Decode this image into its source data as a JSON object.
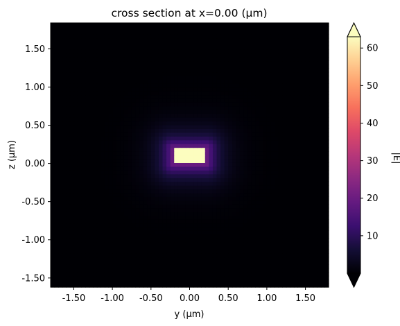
{
  "chart_data": {
    "type": "heatmap",
    "title": "cross section at x=0.00 (μm)",
    "xlabel": "y (μm)",
    "ylabel": "z (μm)",
    "xlim": [
      -1.8,
      1.8
    ],
    "ylim": [
      -1.62,
      1.84
    ],
    "xticks": [
      -1.5,
      -1.0,
      -0.5,
      0.0,
      0.5,
      1.0,
      1.5
    ],
    "xtick_labels": [
      "-1.50",
      "-1.00",
      "-0.50",
      "0.00",
      "0.50",
      "1.00",
      "1.50"
    ],
    "yticks": [
      1.5,
      1.0,
      0.5,
      0.0,
      -0.5,
      -1.0,
      -1.5
    ],
    "ytick_labels": [
      "1.50",
      "1.00",
      "0.50",
      "0.00",
      "-0.50",
      "-1.00",
      "-1.50"
    ],
    "colormap": "magma",
    "colorbar": {
      "label": "|E|",
      "range": [
        0,
        63
      ],
      "ticks": [
        60,
        50,
        40,
        30,
        20,
        10
      ],
      "tick_labels": [
        "60",
        "50",
        "40",
        "30",
        "20",
        "10"
      ],
      "extend": "both"
    },
    "field": {
      "peak_center_y": 0.0,
      "peak_center_z": 0.1,
      "core_halfwidth_y": 0.22,
      "core_halfheight_z": 0.11,
      "core_value": 63,
      "halo_value": 22,
      "halo_decay_um": 0.16
    }
  }
}
